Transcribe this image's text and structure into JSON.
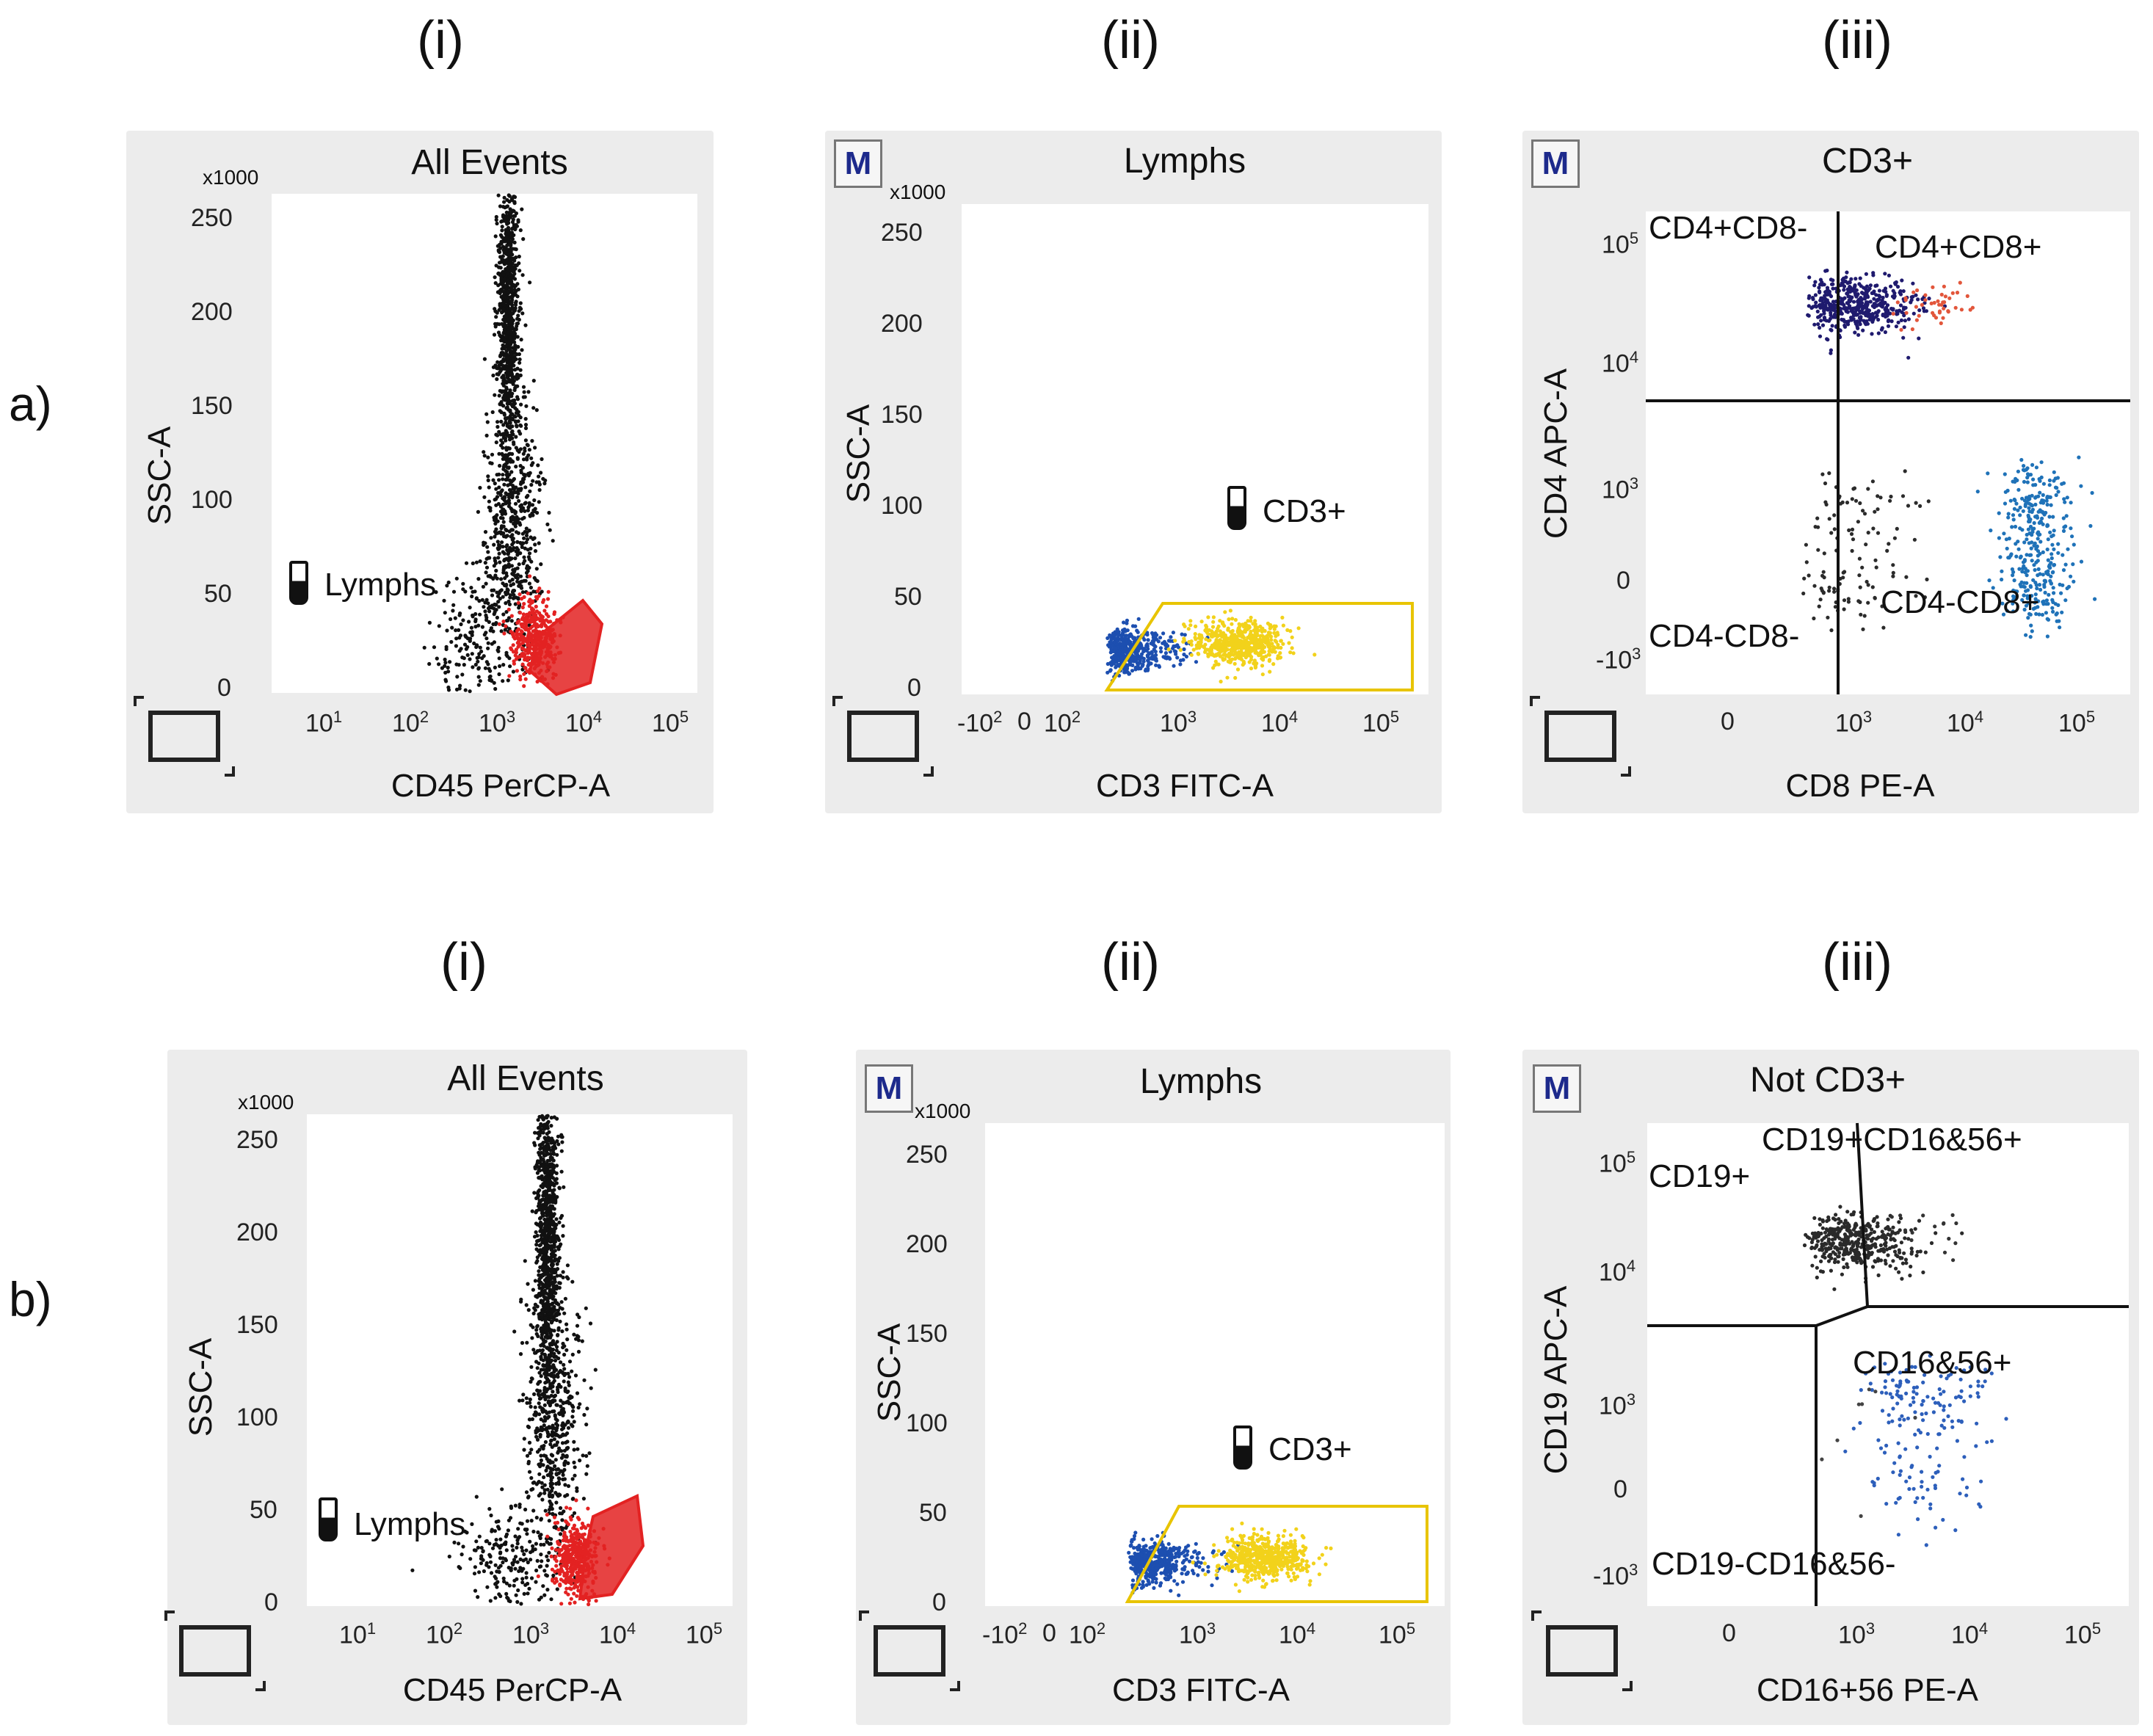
{
  "rows": [
    {
      "label": "a)",
      "panels": [
        {
          "label": "(i)",
          "title": "All Events",
          "ylabel": "SSC-A",
          "xlabel": "CD45 PerCP-A",
          "gate": "Lymphs",
          "badge": ""
        },
        {
          "label": "(ii)",
          "title": "Lymphs",
          "ylabel": "SSC-A",
          "xlabel": "CD3 FITC-A",
          "gate": "CD3+",
          "badge": "M"
        },
        {
          "label": "(iii)",
          "title": "CD3+",
          "ylabel": "CD4 APC-A",
          "xlabel": "CD8 PE-A",
          "badge": "M",
          "quadrants": [
            "CD4+CD8-",
            "CD4+CD8+",
            "CD4-CD8-",
            "CD4-CD8+"
          ]
        }
      ]
    },
    {
      "label": "b)",
      "panels": [
        {
          "label": "(i)",
          "title": "All Events",
          "ylabel": "SSC-A",
          "xlabel": "CD45 PerCP-A",
          "gate": "Lymphs",
          "badge": ""
        },
        {
          "label": "(ii)",
          "title": "Lymphs",
          "ylabel": "SSC-A",
          "xlabel": "CD3 FITC-A",
          "gate": "CD3+",
          "badge": "M"
        },
        {
          "label": "(iii)",
          "title": "Not CD3+",
          "ylabel": "CD19 APC-A",
          "xlabel": "CD16+56 PE-A",
          "badge": "M",
          "quadrants": [
            "CD19+",
            "CD19+CD16&56+",
            "CD19-CD16&56-",
            "CD16&56+"
          ]
        }
      ]
    }
  ],
  "axis_ticks": {
    "ssc": {
      "multiplier": "x1000",
      "values": [
        "0",
        "50",
        "100",
        "150",
        "200",
        "250"
      ]
    },
    "cd45": [
      "10",
      "10",
      "10",
      "10",
      "10"
    ],
    "cd45_exp": [
      "1",
      "2",
      "3",
      "4",
      "5"
    ],
    "cd3": [
      "-10",
      "0",
      "10",
      "10",
      "10",
      "10"
    ],
    "cd3_exp": [
      "2",
      "",
      "2",
      "3",
      "4",
      "5"
    ],
    "biexp": [
      "0",
      "10",
      "10",
      "10"
    ],
    "biexp_exp": [
      "",
      "3",
      "4",
      "5"
    ],
    "biexp_y": [
      "-10",
      "0",
      "10",
      "10",
      "10"
    ],
    "biexp_y_exp": [
      "3",
      "",
      "3",
      "4",
      "5"
    ]
  },
  "chart_data": [
    {
      "type": "scatter",
      "panel": "a(i)",
      "title": "All Events",
      "xlabel": "CD45 PerCP-A",
      "ylabel": "SSC-A",
      "x_scale": "log",
      "xlim": [
        5,
        200000
      ],
      "y_scale": "linear",
      "ylim": [
        0,
        262000
      ],
      "series": [
        {
          "color": "#111111",
          "clusters": [
            {
              "x": 1800,
              "y": 200000,
              "sx": 0.06,
              "sy": 40000,
              "n": 900
            },
            {
              "x": 2000,
              "y": 90000,
              "sx": 0.15,
              "sy": 35000,
              "n": 550
            },
            {
              "x": 900,
              "y": 30000,
              "sx": 0.25,
              "sy": 18000,
              "n": 200
            }
          ]
        },
        {
          "color": "#e32222",
          "clusters": [
            {
              "x": 3500,
              "y": 28000,
              "sx": 0.12,
              "sy": 10000,
              "n": 400
            }
          ]
        }
      ],
      "gate": {
        "name": "Lymphs",
        "color": "#e32222"
      }
    },
    {
      "type": "scatter",
      "panel": "a(ii)",
      "title": "Lymphs",
      "xlabel": "CD3 FITC-A",
      "ylabel": "SSC-A",
      "x_scale": "biexponential",
      "y_scale": "linear",
      "ylim": [
        0,
        262000
      ],
      "series": [
        {
          "color": "#1d4fb0",
          "clusters": [
            {
              "x": 60,
              "y": 23000,
              "sx": 0.35,
              "sy": 6000,
              "n": 450
            }
          ]
        },
        {
          "color": "#f2d21b",
          "clusters": [
            {
              "x": 1500,
              "y": 27000,
              "sx": 0.25,
              "sy": 6000,
              "n": 550
            }
          ]
        }
      ],
      "gate": {
        "name": "CD3+",
        "color": "#e8c400"
      }
    },
    {
      "type": "scatter",
      "panel": "a(iii)",
      "title": "CD3+",
      "xlabel": "CD8 PE-A",
      "ylabel": "CD4 APC-A",
      "x_scale": "biexponential",
      "y_scale": "biexponential",
      "series": [
        {
          "name": "CD4+CD8-",
          "color": "#1f1a6e",
          "clusters": [
            {
              "x": 200,
              "y": 20000,
              "sx": 0.35,
              "sy": 0.15,
              "n": 450
            }
          ]
        },
        {
          "name": "CD4+CD8+",
          "color": "#e2563b",
          "clusters": [
            {
              "x": 1500,
              "y": 20000,
              "sx": 0.2,
              "sy": 0.15,
              "n": 45
            }
          ]
        },
        {
          "name": "CD4-CD8-",
          "color": "#2b2b2b",
          "clusters": [
            {
              "x": 200,
              "y": 0,
              "sx": 0.4,
              "sy": 150,
              "n": 120
            }
          ]
        },
        {
          "name": "CD4-CD8+",
          "color": "#1f72b8",
          "clusters": [
            {
              "x": 20000,
              "y": 0,
              "sx": 0.2,
              "sy": 150,
              "n": 350
            }
          ]
        }
      ],
      "quadrant_split": {
        "x": 900,
        "y": 5000
      }
    },
    {
      "type": "scatter",
      "panel": "b(i)",
      "title": "All Events",
      "xlabel": "CD45 PerCP-A",
      "ylabel": "SSC-A",
      "x_scale": "log",
      "xlim": [
        5,
        200000
      ],
      "y_scale": "linear",
      "ylim": [
        0,
        262000
      ],
      "series": [
        {
          "color": "#111111",
          "clusters": [
            {
              "x": 2000,
              "y": 200000,
              "sx": 0.06,
              "sy": 40000,
              "n": 950
            },
            {
              "x": 2300,
              "y": 100000,
              "sx": 0.15,
              "sy": 35000,
              "n": 550
            },
            {
              "x": 800,
              "y": 25000,
              "sx": 0.25,
              "sy": 15000,
              "n": 220
            }
          ]
        },
        {
          "color": "#e32222",
          "clusters": [
            {
              "x": 4000,
              "y": 25000,
              "sx": 0.12,
              "sy": 10000,
              "n": 400
            }
          ]
        }
      ],
      "gate": {
        "name": "Lymphs",
        "color": "#e32222"
      }
    },
    {
      "type": "scatter",
      "panel": "b(ii)",
      "title": "Lymphs",
      "xlabel": "CD3 FITC-A",
      "ylabel": "SSC-A",
      "x_scale": "biexponential",
      "y_scale": "linear",
      "ylim": [
        0,
        262000
      ],
      "series": [
        {
          "color": "#1d4fb0",
          "clusters": [
            {
              "x": 70,
              "y": 24000,
              "sx": 0.35,
              "sy": 6000,
              "n": 450
            }
          ]
        },
        {
          "color": "#f2d21b",
          "clusters": [
            {
              "x": 1800,
              "y": 26000,
              "sx": 0.25,
              "sy": 6000,
              "n": 550
            }
          ]
        }
      ],
      "gate": {
        "name": "CD3+",
        "color": "#e8c400"
      }
    },
    {
      "type": "scatter",
      "panel": "b(iii)",
      "title": "Not CD3+",
      "xlabel": "CD16+56 PE-A",
      "ylabel": "CD19 APC-A",
      "x_scale": "biexponential",
      "y_scale": "biexponential",
      "series": [
        {
          "name": "CD19+",
          "color": "#2a2a2a",
          "clusters": [
            {
              "x": 200,
              "y": 10000,
              "sx": 0.35,
              "sy": 0.15,
              "n": 400
            }
          ]
        },
        {
          "name": "CD19+CD16&56+",
          "color": "#333333",
          "clusters": [
            {
              "x": 1500,
              "y": 12000,
              "sx": 0.2,
              "sy": 0.15,
              "n": 15
            }
          ]
        },
        {
          "name": "CD16&56+",
          "color": "#2d5fbb",
          "clusters": [
            {
              "x": 1200,
              "y": 100,
              "sx": 0.35,
              "sy": 200,
              "n": 180
            }
          ]
        },
        {
          "name": "CD19-CD16&56-",
          "color": "#444444",
          "clusters": [
            {
              "x": 200,
              "y": 0,
              "sx": 0.3,
              "sy": 150,
              "n": 8
            }
          ]
        }
      ]
    }
  ]
}
